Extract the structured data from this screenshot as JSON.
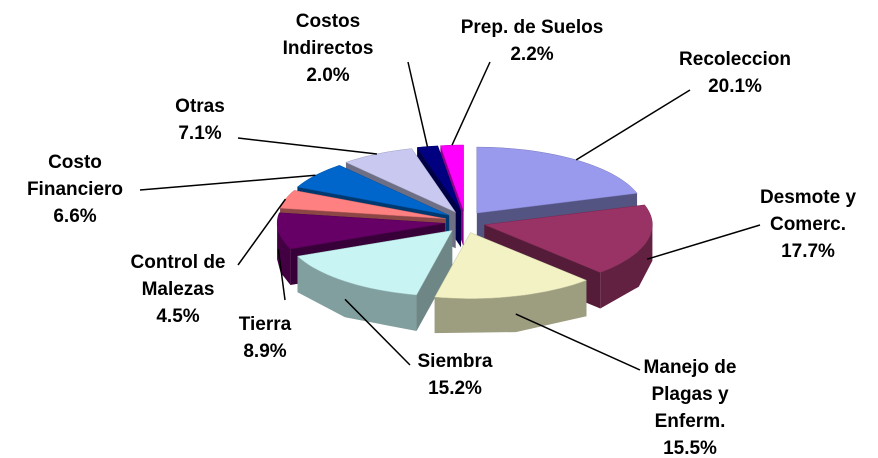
{
  "chart_data": {
    "type": "pie",
    "categories": [
      [
        "Recoleccion"
      ],
      [
        "Desmote y",
        "Comerc."
      ],
      [
        "Manejo de",
        "Plagas y",
        "Enferm."
      ],
      [
        "Siembra"
      ],
      [
        "Tierra"
      ],
      [
        "Control de",
        "Malezas"
      ],
      [
        "Costo",
        "Financiero"
      ],
      [
        "Otras"
      ],
      [
        "Costos",
        "Indirectos"
      ],
      [
        "Prep. de Suelos"
      ]
    ],
    "values": [
      20.1,
      17.7,
      15.5,
      15.2,
      8.9,
      4.5,
      6.6,
      7.1,
      2.0,
      2.2
    ],
    "value_labels": [
      "20.1%",
      "17.7%",
      "15.5%",
      "15.2%",
      "8.9%",
      "4.5%",
      "6.6%",
      "7.1%",
      "2.0%",
      "2.2%"
    ],
    "colors": [
      "#9999ee",
      "#993366",
      "#f2f2c4",
      "#c8f4f4",
      "#660066",
      "#ff8080",
      "#0066cc",
      "#c8c8f0",
      "#000080",
      "#ff00ff"
    ]
  }
}
